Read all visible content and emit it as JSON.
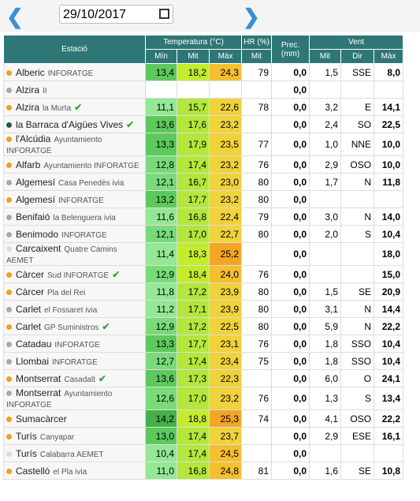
{
  "header": {
    "date": "29/10/2017"
  },
  "table": {
    "columns": {
      "station": "Estació",
      "temperature": "Temperatura (°C)",
      "humidity": "HR (%)",
      "precipitation": "Prec. (mm)",
      "wind": "Vent"
    },
    "subcolumns": [
      "Mín",
      "Mit",
      "Màx",
      "Mit",
      "Mit",
      "Dir",
      "Màx"
    ],
    "rows": [
      {
        "name": "Alberic",
        "network": "INFORATGE",
        "dot": "#f0a020",
        "check": false,
        "values": [
          "13,4",
          "18,2",
          "24,3",
          "79",
          "0,0",
          "1,5",
          "SSE",
          "8,0"
        ]
      },
      {
        "name": "Alzira",
        "network": "II",
        "dot": "#aaaaaa",
        "check": false,
        "values": [
          null,
          null,
          null,
          null,
          "0,0",
          null,
          null,
          null
        ]
      },
      {
        "name": "Alzira",
        "network": "la Murta",
        "dot": "#f0a020",
        "check": true,
        "values": [
          "11,1",
          "15,7",
          "22,6",
          "78",
          "0,0",
          "3,2",
          "E",
          "14,1"
        ]
      },
      {
        "name": "la Barraca d'Aigües Vives",
        "network": null,
        "dot": "#1d5a5a",
        "check": true,
        "values": [
          "13,6",
          "17,6",
          "23,2",
          null,
          "0,0",
          "2,4",
          "SO",
          "22,5"
        ]
      },
      {
        "name": "l'Alcúdia",
        "network": "Ayuntamiento INFORATGE",
        "dot": "#f0a020",
        "check": false,
        "values": [
          "13,3",
          "17,9",
          "23,5",
          "77",
          "0,0",
          "1,0",
          "NNE",
          "10,0"
        ]
      },
      {
        "name": "Alfarb",
        "network": "Ayuntamiento INFORATGE",
        "dot": "#f0a020",
        "check": false,
        "values": [
          "12,8",
          "17,4",
          "23,2",
          "76",
          "0,0",
          "2,9",
          "OSO",
          "10,0"
        ]
      },
      {
        "name": "Algemesí",
        "network": "Casa Penedès ivia",
        "dot": "#aaaaaa",
        "check": false,
        "values": [
          "12,1",
          "16,7",
          "23,0",
          "80",
          "0,0",
          "1,7",
          "N",
          "11,8"
        ]
      },
      {
        "name": "Algemesí",
        "network": "INFORATGE",
        "dot": "#f0a020",
        "check": false,
        "values": [
          "13,2",
          "17,7",
          "23,2",
          "80",
          "0,0",
          null,
          null,
          null
        ]
      },
      {
        "name": "Benifaió",
        "network": "la Belenguera ivia",
        "dot": "#aaaaaa",
        "check": false,
        "values": [
          "11,6",
          "16,8",
          "22,4",
          "79",
          "0,0",
          "3,0",
          "N",
          "14,0"
        ]
      },
      {
        "name": "Benimodo",
        "network": "INFORATGE",
        "dot": "#aaaaaa",
        "check": false,
        "values": [
          "12,1",
          "17,0",
          "22,7",
          "80",
          "0,0",
          "2,0",
          "S",
          "10,4"
        ]
      },
      {
        "name": "Carcaixent",
        "network": "Quatre Camins AEMET",
        "dot": "#dddddd",
        "check": false,
        "values": [
          "11,4",
          "18,3",
          "25,2",
          null,
          "0,0",
          null,
          null,
          "18,0"
        ]
      },
      {
        "name": "Càrcer",
        "network": "Sud INFORATGE",
        "dot": "#f0a020",
        "check": true,
        "values": [
          "12,9",
          "18,4",
          "24,0",
          "76",
          "0,0",
          null,
          null,
          "15,0"
        ]
      },
      {
        "name": "Càrcer",
        "network": "Pla del Rei",
        "dot": "#f0a020",
        "check": false,
        "values": [
          "11,8",
          "17,2",
          "23,9",
          "80",
          "0,0",
          "1,5",
          "SE",
          "20,9"
        ]
      },
      {
        "name": "Carlet",
        "network": "el Fossaret ivia",
        "dot": "#aaaaaa",
        "check": false,
        "values": [
          "11,2",
          "17,1",
          "23,9",
          "80",
          "0,0",
          "3,1",
          "N",
          "14,4"
        ]
      },
      {
        "name": "Carlet",
        "network": "GP Suministros",
        "dot": "#f0a020",
        "check": true,
        "values": [
          "12,9",
          "17,2",
          "22,5",
          "80",
          "0,0",
          "5,9",
          "N",
          "22,2"
        ]
      },
      {
        "name": "Catadau",
        "network": "INFORATGE",
        "dot": "#aaaaaa",
        "check": false,
        "values": [
          "13,3",
          "17,7",
          "23,1",
          "76",
          "0,0",
          "1,8",
          "SSO",
          "10,4"
        ]
      },
      {
        "name": "Llombai",
        "network": "INFORATGE",
        "dot": "#aaaaaa",
        "check": false,
        "values": [
          "12,7",
          "17,4",
          "23,4",
          "75",
          "0,0",
          "1,8",
          "SSO",
          "10,4"
        ]
      },
      {
        "name": "Montserrat",
        "network": "Casadalt",
        "dot": "#f0a020",
        "check": true,
        "values": [
          "13,6",
          "17,3",
          "22,3",
          null,
          "0,0",
          "6,0",
          "O",
          "24,1"
        ]
      },
      {
        "name": "Montserrat",
        "network": "Ayuntamiento INFORATGE",
        "dot": "#aaaaaa",
        "check": false,
        "values": [
          "12,6",
          "17,0",
          "23,2",
          "76",
          "0,0",
          "1,3",
          "S",
          "13,4"
        ]
      },
      {
        "name": "Sumacàrcer",
        "network": null,
        "dot": "#f0a020",
        "check": false,
        "values": [
          "14,2",
          "18,8",
          "25,3",
          "74",
          "0,0",
          "4,1",
          "OSO",
          "22,2"
        ]
      },
      {
        "name": "Turís",
        "network": "Canyapar",
        "dot": "#f0a020",
        "check": false,
        "values": [
          "13,0",
          "17,4",
          "23,7",
          null,
          "0,0",
          "2,9",
          "ESE",
          "16,1"
        ]
      },
      {
        "name": "Turís",
        "network": "Calabarra AEMET",
        "dot": "#dddddd",
        "check": false,
        "values": [
          "10,4",
          "17,4",
          "24,5",
          null,
          "0,0",
          null,
          null,
          null
        ]
      },
      {
        "name": "Castelló",
        "network": "el Pla ivia",
        "dot": "#f0a020",
        "check": false,
        "values": [
          "11,0",
          "16,8",
          "24,8",
          "81",
          "0,0",
          "1,6",
          "SE",
          "10,8"
        ]
      }
    ]
  }
}
